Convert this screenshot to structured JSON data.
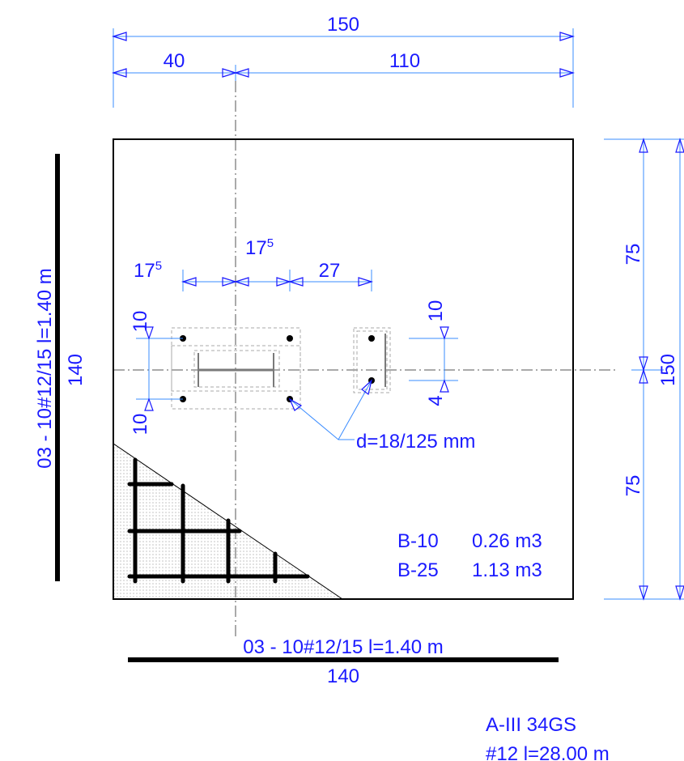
{
  "dims": {
    "top_total": "150",
    "top_left": "40",
    "top_right": "110",
    "bolt_left": "17",
    "bolt_left_sup": "5",
    "bolt_mid": "17",
    "bolt_mid_sup": "5",
    "bolt_right": "27",
    "left_upper": "10",
    "left_lower": "10",
    "right_upper": "10",
    "right_lower": "4",
    "side_upper": "75",
    "side_lower": "75",
    "side_total": "150"
  },
  "bolt_label": "d=18/125 mm",
  "concrete": [
    {
      "grade": "B-10",
      "volume": "0.26 m3"
    },
    {
      "grade": "B-25",
      "volume": "1.13 m3"
    }
  ],
  "rebar_vertical": {
    "spec": "03 - 10#12/15   l=1.40 m",
    "length": "140"
  },
  "rebar_horizontal": {
    "spec": "03 - 10#12/15   l=1.40 m",
    "length": "140"
  },
  "steel_grade": "A-III 34GS",
  "steel_total": "#12   l=28.00 m"
}
